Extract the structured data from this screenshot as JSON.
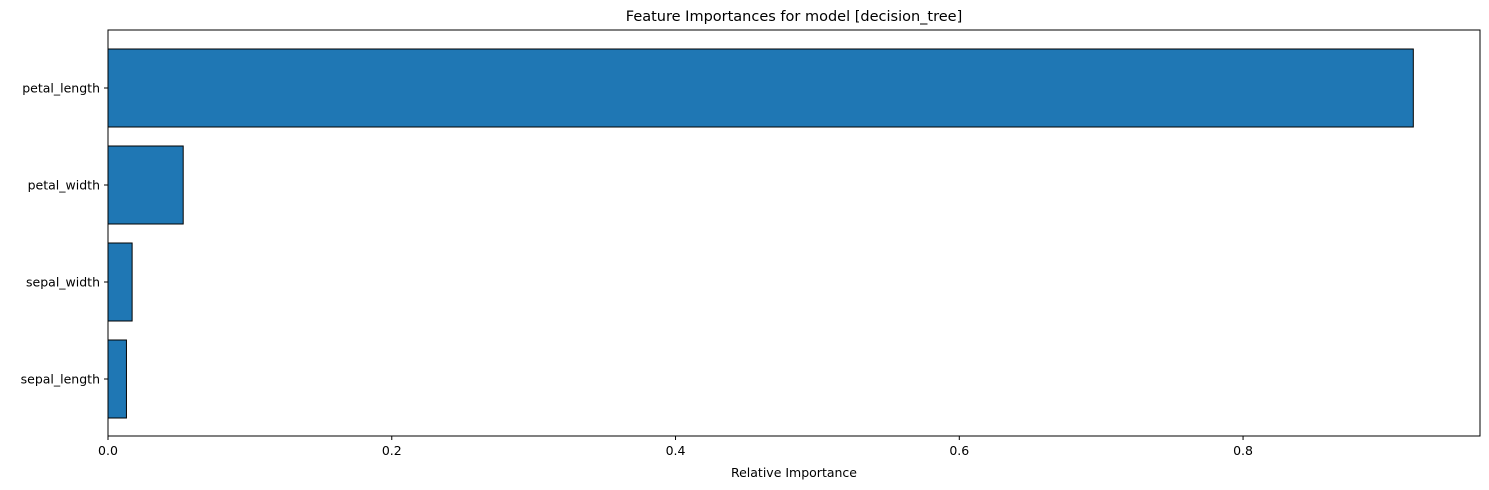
{
  "chart_data": {
    "type": "bar",
    "orientation": "horizontal",
    "title": "Feature Importances for model [decision_tree]",
    "xlabel": "Relative Importance",
    "ylabel": "",
    "categories": [
      "petal_length",
      "petal_width",
      "sepal_width",
      "sepal_length"
    ],
    "values": [
      0.92,
      0.053,
      0.017,
      0.013
    ],
    "xlim": [
      0,
      0.967
    ],
    "xticks": [
      0.0,
      0.2,
      0.4,
      0.6,
      0.8
    ],
    "xtick_labels": [
      "0.0",
      "0.2",
      "0.4",
      "0.6",
      "0.8"
    ],
    "bar_color": "#1f77b4",
    "edge_color": "#000000",
    "grid": false,
    "legend": "none"
  }
}
